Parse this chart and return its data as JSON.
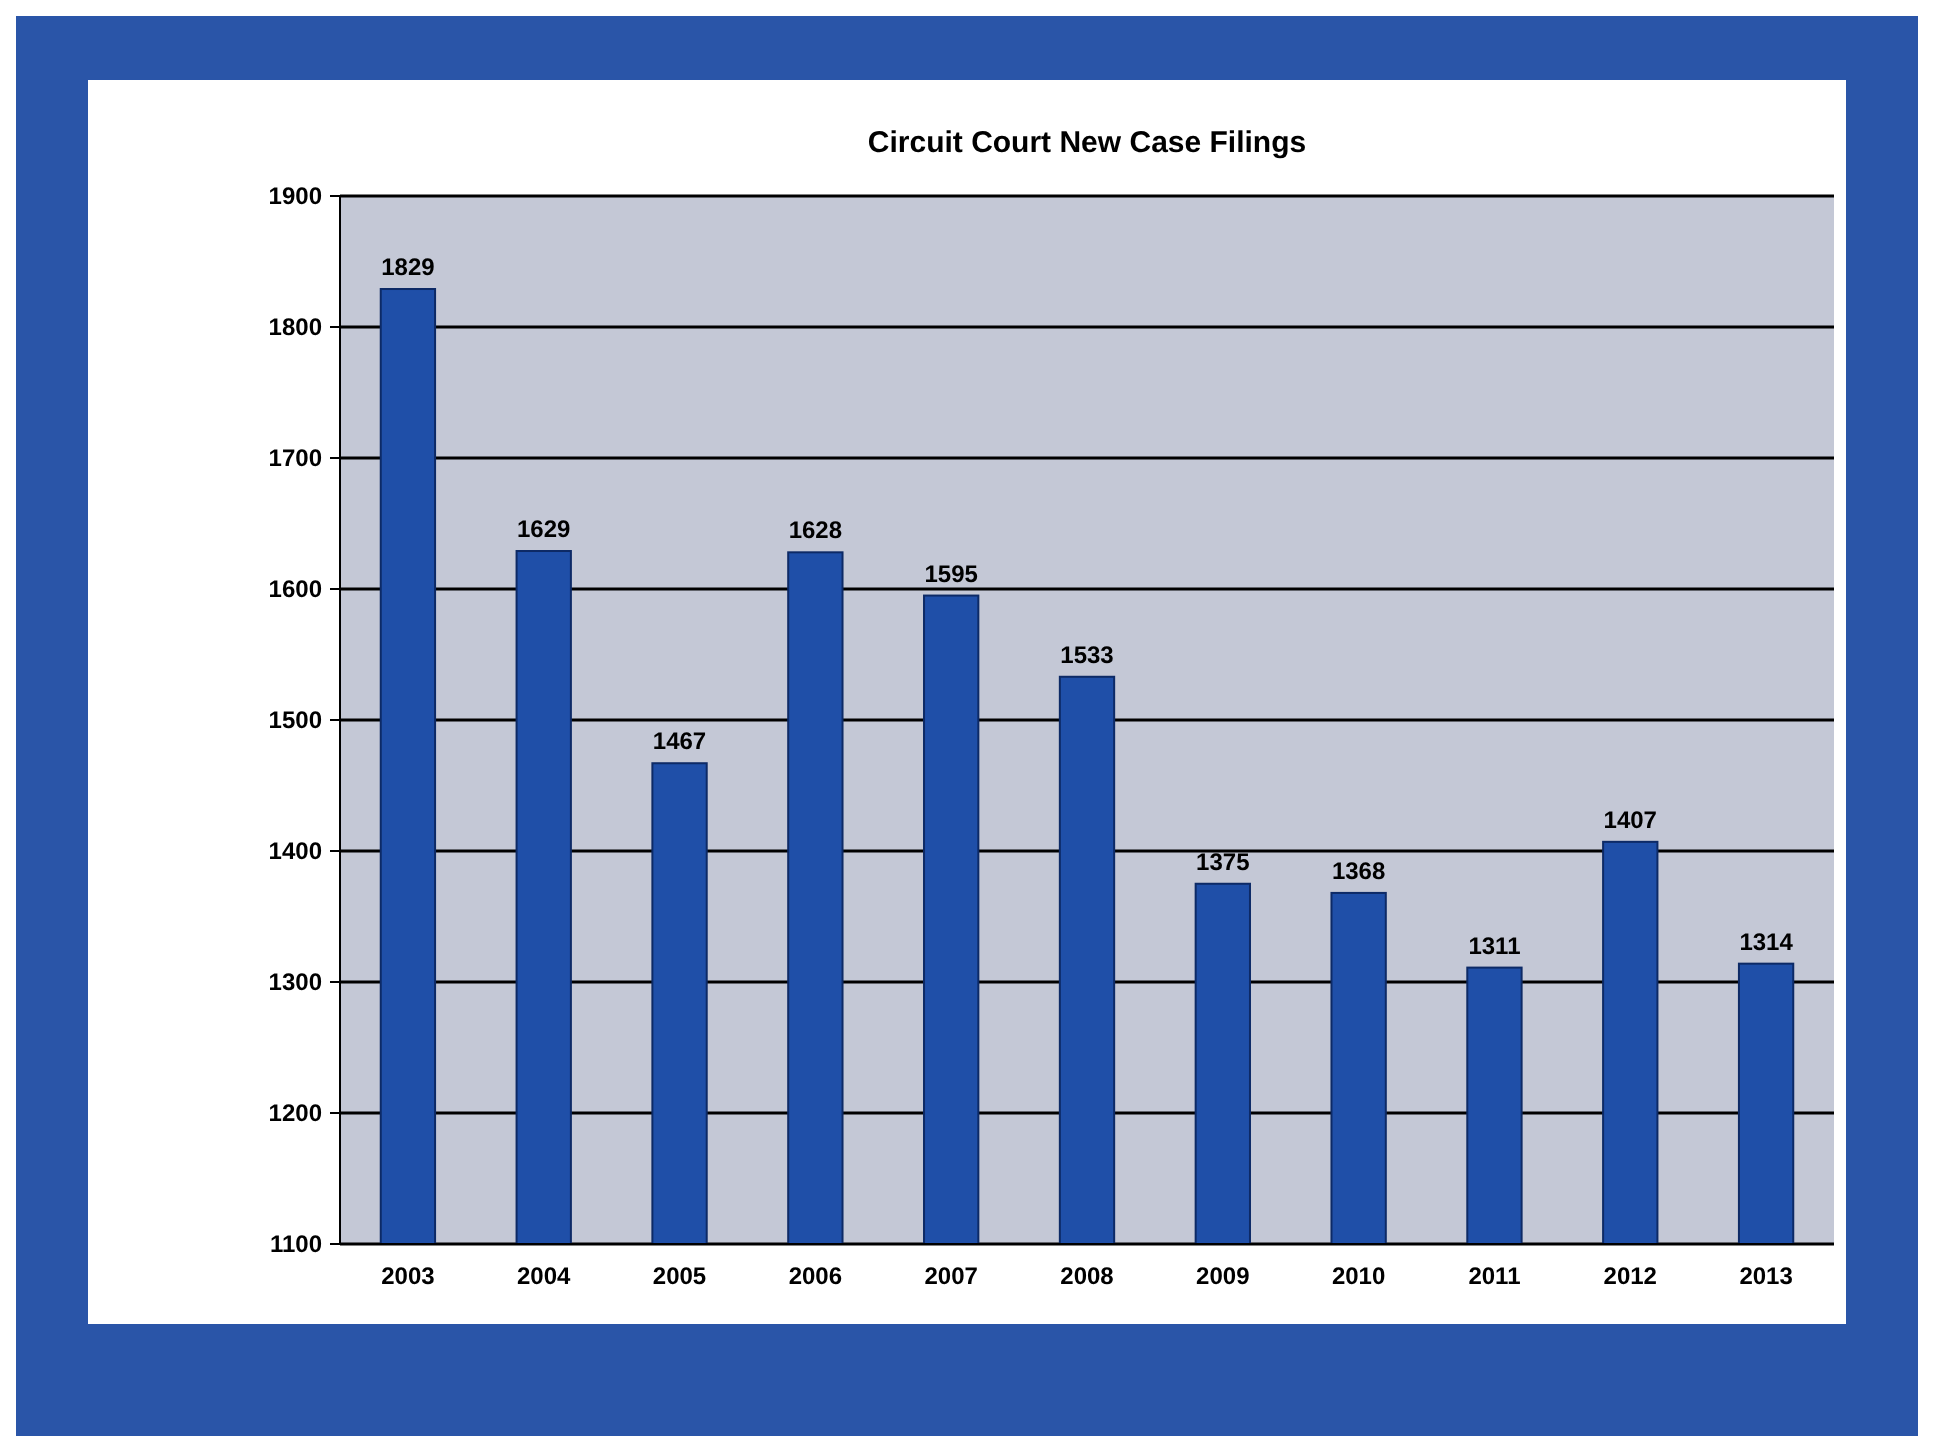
{
  "chart_data": {
    "type": "bar",
    "title": "Circuit Court New Case Filings",
    "categories": [
      "2003",
      "2004",
      "2005",
      "2006",
      "2007",
      "2008",
      "2009",
      "2010",
      "2011",
      "2012",
      "2013"
    ],
    "values": [
      1829,
      1629,
      1467,
      1628,
      1595,
      1533,
      1375,
      1368,
      1311,
      1407,
      1314
    ],
    "color": "#1f4fa8",
    "data_labels": true,
    "ylim": [
      1100,
      1900
    ],
    "yticks": [
      1100,
      1200,
      1300,
      1400,
      1500,
      1600,
      1700,
      1800,
      1900
    ],
    "grid": "y"
  }
}
